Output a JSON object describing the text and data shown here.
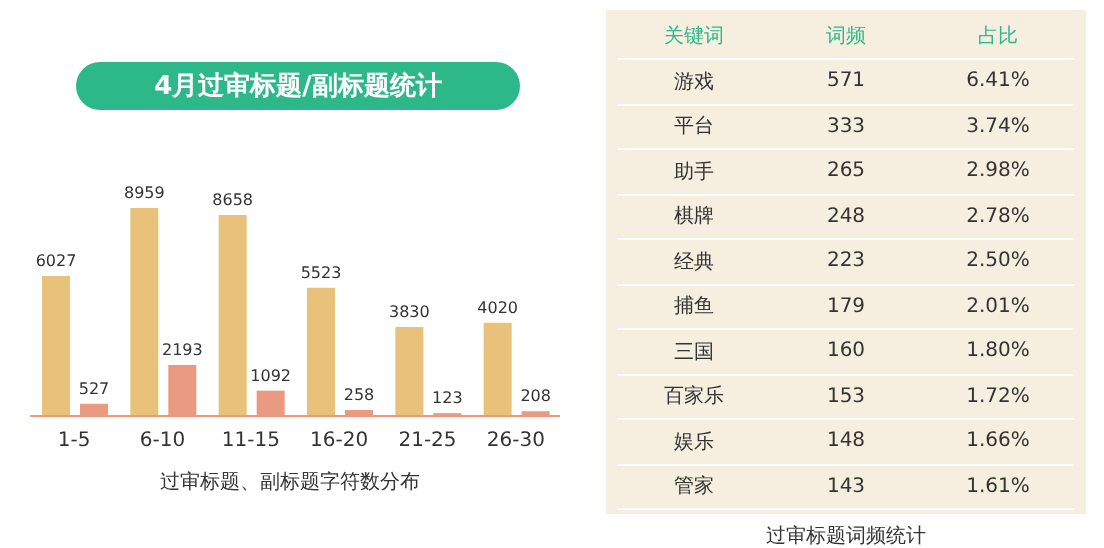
{
  "chart_data": [
    {
      "type": "bar",
      "title": "4月过审标题/副标题统计",
      "xlabel": "过审标题、副标题字符数分布",
      "categories": [
        "1-5",
        "6-10",
        "11-15",
        "16-20",
        "21-25",
        "26-30"
      ],
      "series": [
        {
          "color": "#e8c27a",
          "values": [
            6027,
            8959,
            8658,
            5523,
            3830,
            4020
          ]
        },
        {
          "color": "#eb9a82",
          "values": [
            527,
            2193,
            1092,
            258,
            123,
            208
          ]
        }
      ],
      "data_labels": true
    },
    {
      "type": "other",
      "title": "过审标题词频统计",
      "xlabel": "关键词",
      "categories": [
        "游戏",
        "平台",
        "助手",
        "棋牌",
        "经典",
        "捕鱼",
        "三国",
        "百家乐",
        "娱乐",
        "管家"
      ],
      "series": [
        {
          "name": "词频",
          "values": [
            571,
            333,
            265,
            248,
            223,
            179,
            160,
            153,
            148,
            143
          ]
        },
        {
          "name": "占比",
          "values": [
            6.41,
            3.74,
            2.98,
            2.78,
            2.5,
            2.01,
            1.8,
            1.72,
            1.66,
            1.61
          ],
          "value_labels": [
            "6.41%",
            "3.74%",
            "2.98%",
            "2.78%",
            "2.50%",
            "2.01%",
            "1.80%",
            "1.72%",
            "1.66%",
            "1.61%"
          ]
        }
      ],
      "data_labels": true
    }
  ]
}
